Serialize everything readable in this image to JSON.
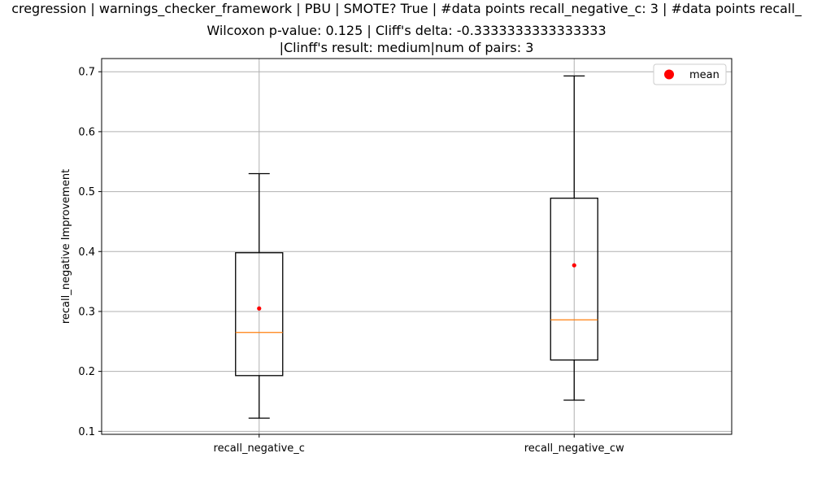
{
  "chart_data": {
    "type": "box",
    "title_lines": [
      "cregression | warnings_checker_framework | PBU | SMOTE? True | #data points recall_negative_c: 3 | #data points recall_",
      "Wilcoxon p-value: 0.125 | Cliff's delta: -0.3333333333333333",
      "|Clinff's result: medium|num of pairs: 3"
    ],
    "xlabel": "",
    "ylabel": "recall_negative Improvement",
    "ylim": [
      0.095,
      0.722
    ],
    "yticks": [
      "0.1",
      "0.2",
      "0.3",
      "0.4",
      "0.5",
      "0.6",
      "0.7"
    ],
    "grid": true,
    "legend": {
      "placement": "top-right",
      "entries": [
        "mean"
      ]
    },
    "categories": [
      "recall_negative_c",
      "recall_negative_cw"
    ],
    "boxes": [
      {
        "whisker_low": 0.122,
        "q1": 0.193,
        "median": 0.265,
        "q3": 0.398,
        "whisker_high": 0.53,
        "mean": 0.305
      },
      {
        "whisker_low": 0.152,
        "q1": 0.219,
        "median": 0.286,
        "q3": 0.489,
        "whisker_high": 0.693,
        "mean": 0.377
      }
    ],
    "colors": {
      "median": "#ff7f0e",
      "mean": "#ff0000",
      "box": "#000000",
      "grid": "#b0b0b0"
    }
  }
}
